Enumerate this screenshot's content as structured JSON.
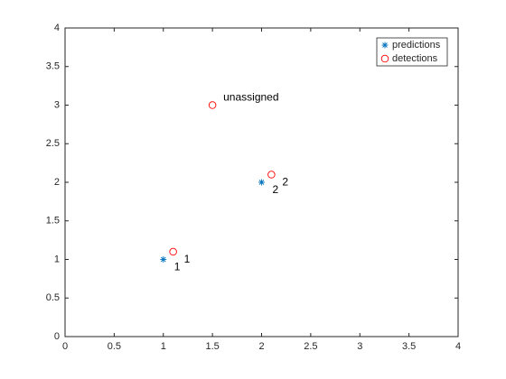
{
  "chart_data": {
    "type": "scatter",
    "xlim": [
      0,
      4
    ],
    "ylim": [
      0,
      4
    ],
    "xticks": [
      0,
      0.5,
      1,
      1.5,
      2,
      2.5,
      3,
      3.5,
      4
    ],
    "yticks": [
      0,
      0.5,
      1,
      1.5,
      2,
      2.5,
      3,
      3.5,
      4
    ],
    "legend": "upper right",
    "series": [
      {
        "name": "predictions",
        "marker": "asterisk",
        "color": "#0072bd",
        "x": [
          1,
          2
        ],
        "y": [
          1,
          2
        ],
        "labels": [
          "1",
          "2"
        ]
      },
      {
        "name": "detections",
        "marker": "circle",
        "color": "#ff0000",
        "x": [
          1.1,
          2.1,
          1.5
        ],
        "y": [
          1.1,
          2.1,
          3
        ],
        "labels": [
          "1",
          "2",
          "unassigned"
        ]
      }
    ]
  }
}
